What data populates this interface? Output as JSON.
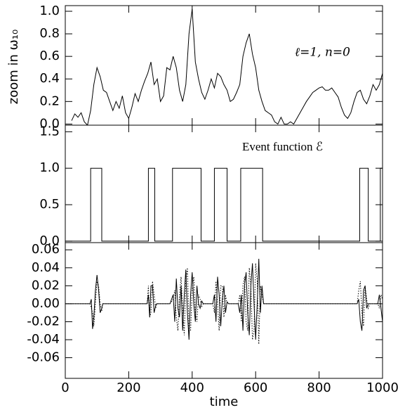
{
  "chart_data": [
    {
      "type": "line",
      "ylabel": "zoom in ω₁₀",
      "annotation": "ℓ=1,  n=0",
      "ylim": [
        -0.01,
        1.05
      ],
      "yticks": [
        {
          "value": 0,
          "label": "0.0"
        },
        0.2,
        0.4,
        0.6,
        0.8,
        {
          "value": 1,
          "label": "1.0"
        }
      ],
      "x": [
        20,
        30,
        40,
        50,
        60,
        70,
        80,
        90,
        100,
        110,
        120,
        130,
        140,
        150,
        160,
        170,
        180,
        190,
        200,
        210,
        220,
        230,
        240,
        250,
        260,
        270,
        280,
        290,
        300,
        310,
        320,
        330,
        340,
        350,
        360,
        370,
        380,
        390,
        400,
        410,
        420,
        430,
        440,
        450,
        460,
        470,
        480,
        490,
        500,
        510,
        520,
        530,
        540,
        550,
        560,
        570,
        580,
        590,
        600,
        610,
        620,
        630,
        640,
        650,
        660,
        670,
        680,
        690,
        700,
        710,
        720,
        730,
        740,
        750,
        760,
        770,
        780,
        790,
        800,
        810,
        820,
        830,
        840,
        850,
        860,
        870,
        880,
        890,
        900,
        910,
        920,
        930,
        940,
        950,
        960,
        970,
        980,
        990,
        1000
      ],
      "series": [
        {
          "color": "#000000",
          "values": [
            0.03,
            0.09,
            0.06,
            0.1,
            0.02,
            -0.01,
            0.12,
            0.35,
            0.5,
            0.42,
            0.3,
            0.28,
            0.2,
            0.12,
            0.2,
            0.14,
            0.25,
            0.1,
            0.05,
            0.15,
            0.27,
            0.2,
            0.3,
            0.38,
            0.45,
            0.55,
            0.35,
            0.4,
            0.2,
            0.25,
            0.5,
            0.48,
            0.6,
            0.5,
            0.3,
            0.2,
            0.35,
            0.8,
            1.02,
            0.55,
            0.4,
            0.28,
            0.22,
            0.3,
            0.4,
            0.32,
            0.45,
            0.42,
            0.35,
            0.3,
            0.2,
            0.22,
            0.28,
            0.35,
            0.6,
            0.72,
            0.8,
            0.62,
            0.5,
            0.3,
            0.2,
            0.12,
            0.1,
            0.08,
            0.02,
            0.0,
            0.06,
            0.0,
            0.0,
            0.02,
            0.0,
            0.05,
            0.1,
            0.15,
            0.2,
            0.24,
            0.28,
            0.3,
            0.32,
            0.33,
            0.3,
            0.3,
            0.32,
            0.28,
            0.24,
            0.15,
            0.08,
            0.05,
            0.1,
            0.2,
            0.28,
            0.3,
            0.22,
            0.18,
            0.25,
            0.35,
            0.3,
            0.35,
            0.45
          ]
        }
      ]
    },
    {
      "type": "line",
      "annotation": "Event function ℰ",
      "ylim": [
        -0.02,
        1.59
      ],
      "yticks": [
        {
          "value": 0,
          "label": "0.0"
        },
        0.5,
        {
          "value": 1,
          "label": "1.0"
        },
        1.5
      ],
      "x": [
        0,
        80,
        80,
        115,
        115,
        262,
        262,
        282,
        282,
        338,
        338,
        428,
        428,
        470,
        470,
        510,
        510,
        553,
        553,
        622,
        622,
        928,
        928,
        955,
        955,
        993,
        993,
        1000
      ],
      "series": [
        {
          "color": "#000000",
          "values": [
            0,
            0,
            1,
            1,
            0,
            0,
            1,
            1,
            0,
            0,
            1,
            1,
            0,
            0,
            1,
            1,
            0,
            0,
            1,
            1,
            0,
            0,
            1,
            1,
            0,
            0,
            1,
            1
          ]
        }
      ]
    },
    {
      "type": "line",
      "xlabel": "time",
      "xlim": [
        0,
        1000
      ],
      "xticks": [
        0,
        200,
        400,
        600,
        800,
        1000
      ],
      "ylim": [
        -0.083,
        0.068
      ],
      "yticks": [
        -0.06,
        -0.04,
        -0.02,
        {
          "value": 0,
          "label": "0.00"
        },
        0.02,
        0.04,
        0.06
      ],
      "x": [
        0,
        78,
        82,
        86,
        90,
        95,
        100,
        105,
        110,
        115,
        118,
        258,
        262,
        266,
        270,
        275,
        280,
        285,
        288,
        330,
        340,
        345,
        350,
        355,
        360,
        365,
        370,
        375,
        380,
        385,
        390,
        395,
        400,
        405,
        410,
        415,
        420,
        425,
        430,
        435,
        465,
        470,
        475,
        480,
        485,
        490,
        495,
        500,
        505,
        510,
        515,
        545,
        550,
        555,
        560,
        565,
        570,
        575,
        580,
        585,
        590,
        595,
        600,
        605,
        610,
        615,
        620,
        625,
        920,
        925,
        930,
        935,
        940,
        945,
        950,
        955,
        960,
        985,
        990,
        995,
        1000
      ],
      "series": [
        {
          "color": "#000000",
          "dash": "solid",
          "values": [
            0,
            0,
            0.005,
            -0.028,
            -0.015,
            0.015,
            0.032,
            0.015,
            -0.01,
            -0.005,
            0,
            0,
            0.01,
            -0.015,
            0.02,
            0.02,
            -0.01,
            -0.002,
            0,
            0,
            0.01,
            -0.02,
            0.028,
            -0.005,
            -0.015,
            0.02,
            -0.03,
            0.01,
            0.038,
            -0.01,
            -0.04,
            0.01,
            0.035,
            0.0,
            -0.02,
            0.02,
            0.0,
            -0.005,
            0.003,
            0,
            0,
            0.01,
            -0.02,
            0.03,
            0.01,
            -0.025,
            0.005,
            0.02,
            -0.01,
            0.002,
            0,
            0,
            -0.01,
            0.01,
            -0.03,
            0.02,
            0.035,
            -0.01,
            -0.035,
            0.02,
            0.045,
            0.0,
            -0.04,
            0.0,
            0.05,
            -0.01,
            0.02,
            0,
            0,
            0.005,
            -0.02,
            -0.03,
            0.015,
            0.02,
            -0.005,
            0.0,
            0,
            0,
            0.01,
            -0.005,
            -0.02
          ]
        },
        {
          "color": "#000000",
          "dash": "dotted",
          "values": [
            0,
            0,
            -0.005,
            -0.01,
            -0.025,
            0.0,
            0.025,
            0.02,
            0.0,
            -0.008,
            0,
            0,
            0.02,
            -0.015,
            -0.01,
            0.025,
            0.01,
            -0.005,
            0,
            0,
            0.005,
            0.015,
            -0.015,
            -0.03,
            0.01,
            0.03,
            -0.005,
            -0.035,
            0.025,
            0.04,
            -0.03,
            -0.03,
            0.015,
            0.03,
            -0.01,
            -0.02,
            0.01,
            0.005,
            -0.003,
            0,
            0,
            -0.01,
            0.025,
            0.0,
            -0.03,
            0.02,
            0.02,
            -0.015,
            0.01,
            0.0,
            0,
            0,
            0.01,
            -0.02,
            0.02,
            0.03,
            -0.02,
            -0.03,
            0.04,
            0.02,
            -0.04,
            -0.03,
            0.045,
            0.025,
            -0.045,
            0.02,
            0.01,
            0,
            0,
            0.015,
            0.025,
            -0.01,
            -0.025,
            0.02,
            0.005,
            -0.005,
            0,
            0,
            -0.005,
            0.01,
            0.005
          ]
        }
      ]
    }
  ]
}
